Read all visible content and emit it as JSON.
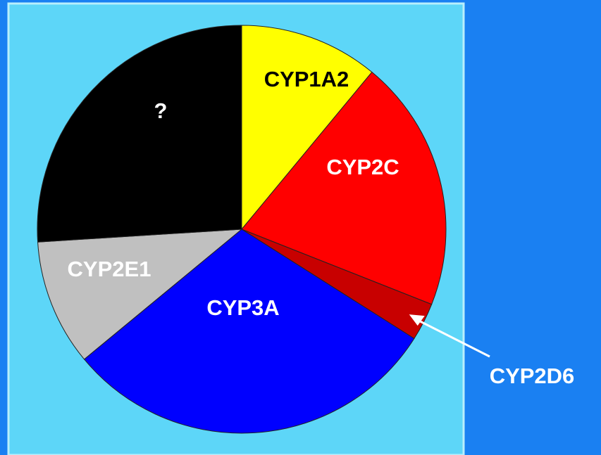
{
  "chart_data": {
    "type": "pie",
    "categories": [
      "CYP1A2",
      "CYP2C",
      "CYP2D6",
      "CYP3A",
      "CYP2E1",
      "?"
    ],
    "values": [
      11,
      20,
      3,
      30,
      10,
      26
    ],
    "colors": [
      "#ffff00",
      "#ff0000",
      "#c80000",
      "#0000ff",
      "#c0c0c0",
      "#000000"
    ]
  }
}
